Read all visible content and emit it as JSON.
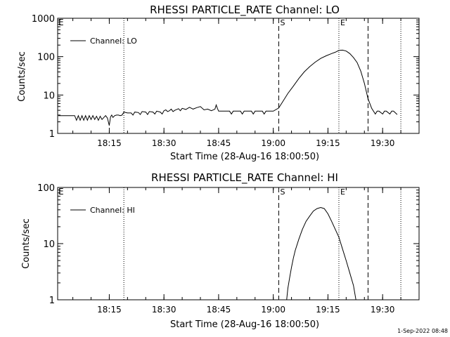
{
  "footer": {
    "timestamp": "1-Sep-2022 08:48"
  },
  "chart_data": [
    {
      "type": "line",
      "title": "RHESSI PARTICLE_RATE Channel: LO",
      "xlabel": "Start Time (28-Aug-16 18:00:50)",
      "ylabel": "Counts/sec",
      "y_scale": "log",
      "ylim": [
        1,
        1000
      ],
      "xlim": [
        "18:00:50",
        "19:40:00"
      ],
      "x_ticks": [
        "18:15",
        "18:30",
        "18:45",
        "19:00",
        "19:15",
        "19:30"
      ],
      "y_ticks": [
        "1",
        "10",
        "100",
        "1000"
      ],
      "legend": {
        "placement": "top-left",
        "entries": [
          "Channel: LO"
        ]
      },
      "markers": [
        {
          "time": "18:19:00",
          "style": "dotted",
          "label": ""
        },
        {
          "time": "19:01:30",
          "style": "dashed",
          "label": "S"
        },
        {
          "time": "19:18:00",
          "style": "dotted",
          "label": "E"
        },
        {
          "time": "19:26:00",
          "style": "dashed",
          "label": ""
        },
        {
          "time": "19:35:00",
          "style": "dotted",
          "label": ""
        }
      ],
      "corner_label": "E",
      "series": [
        {
          "name": "Channel: LO",
          "x": [
            "18:01:00",
            "18:04:00",
            "18:05:30",
            "18:06:00",
            "18:06:30",
            "18:07:00",
            "18:07:30",
            "18:08:00",
            "18:08:30",
            "18:09:00",
            "18:09:30",
            "18:10:00",
            "18:10:30",
            "18:11:00",
            "18:11:30",
            "18:12:00",
            "18:12:30",
            "18:13:00",
            "18:13:30",
            "18:14:00",
            "18:14:30",
            "18:15:00",
            "18:15:20",
            "18:15:40",
            "18:16:00",
            "18:16:30",
            "18:17:00",
            "18:17:30",
            "18:18:00",
            "18:18:30",
            "18:19:00",
            "18:20:00",
            "18:21:00",
            "18:21:30",
            "18:22:00",
            "18:23:00",
            "18:23:30",
            "18:24:00",
            "18:25:00",
            "18:25:30",
            "18:26:00",
            "18:27:00",
            "18:27:30",
            "18:28:00",
            "18:29:00",
            "18:29:30",
            "18:30:00",
            "18:30:30",
            "18:31:00",
            "18:31:30",
            "18:32:00",
            "18:32:30",
            "18:33:00",
            "18:34:00",
            "18:34:30",
            "18:35:00",
            "18:36:00",
            "18:37:00",
            "18:38:00",
            "18:39:00",
            "18:40:00",
            "18:41:00",
            "18:42:00",
            "18:43:00",
            "18:44:00",
            "18:44:20",
            "18:44:40",
            "18:45:00",
            "18:47:00",
            "18:48:00",
            "18:48:30",
            "18:49:00",
            "18:51:00",
            "18:51:30",
            "18:52:00",
            "18:54:00",
            "18:54:30",
            "18:55:00",
            "18:57:00",
            "18:57:30",
            "18:58:00",
            "19:00:00",
            "19:01:30",
            "19:02:30",
            "19:04:00",
            "19:05:30",
            "19:07:00",
            "19:08:30",
            "19:10:00",
            "19:11:30",
            "19:13:00",
            "19:14:30",
            "19:16:00",
            "19:17:00",
            "19:18:00",
            "19:19:00",
            "19:20:00",
            "19:21:00",
            "19:22:00",
            "19:23:00",
            "19:24:00",
            "19:25:00",
            "19:26:00",
            "19:27:00",
            "19:28:00",
            "19:28:30",
            "19:29:00",
            "19:30:00",
            "19:30:30",
            "19:31:00",
            "19:32:00",
            "19:32:30",
            "19:33:00",
            "19:34:00"
          ],
          "y": [
            2.9,
            2.9,
            2.9,
            2.2,
            2.9,
            2.2,
            2.9,
            2.2,
            2.9,
            2.2,
            2.9,
            2.3,
            2.9,
            2.3,
            2.8,
            2.2,
            2.8,
            2.3,
            2.6,
            2.9,
            2.5,
            1.6,
            2.7,
            3.0,
            2.6,
            2.9,
            3.0,
            3.0,
            2.9,
            3.0,
            3.6,
            3.4,
            3.4,
            3.0,
            3.6,
            3.5,
            3.1,
            3.7,
            3.6,
            3.1,
            3.7,
            3.6,
            3.2,
            3.8,
            3.6,
            3.2,
            3.9,
            4.1,
            3.7,
            3.9,
            4.3,
            3.7,
            4.0,
            4.4,
            3.9,
            4.5,
            4.2,
            4.8,
            4.3,
            4.7,
            5.0,
            4.1,
            4.3,
            3.9,
            4.3,
            5.5,
            4.5,
            3.8,
            3.8,
            3.8,
            3.2,
            3.8,
            3.8,
            3.2,
            3.8,
            3.8,
            3.2,
            3.8,
            3.8,
            3.2,
            3.8,
            3.8,
            4.6,
            6.5,
            11,
            17,
            27,
            40,
            55,
            72,
            90,
            105,
            120,
            130,
            145,
            148,
            140,
            120,
            95,
            70,
            42,
            20,
            8,
            4.5,
            3.2,
            3.8,
            3.8,
            3.2,
            3.8,
            3.8,
            3.2,
            3.8,
            3.8,
            3.1
          ]
        }
      ]
    },
    {
      "type": "line",
      "title": "RHESSI PARTICLE_RATE Channel: HI",
      "xlabel": "Start Time (28-Aug-16 18:00:50)",
      "ylabel": "Counts/sec",
      "y_scale": "log",
      "ylim": [
        1,
        100
      ],
      "xlim": [
        "18:00:50",
        "19:40:00"
      ],
      "x_ticks": [
        "18:15",
        "18:30",
        "18:45",
        "19:00",
        "19:15",
        "19:30"
      ],
      "y_ticks": [
        "1",
        "10",
        "100"
      ],
      "legend": {
        "placement": "top-left",
        "entries": [
          "Channel: HI"
        ]
      },
      "markers": [
        {
          "time": "18:19:00",
          "style": "dotted",
          "label": ""
        },
        {
          "time": "19:01:30",
          "style": "dashed",
          "label": "S"
        },
        {
          "time": "19:18:00",
          "style": "dotted",
          "label": "E"
        },
        {
          "time": "19:26:00",
          "style": "dashed",
          "label": ""
        },
        {
          "time": "19:35:00",
          "style": "dotted",
          "label": ""
        }
      ],
      "corner_label": "E",
      "series": [
        {
          "name": "Channel: HI",
          "x": [
            "19:03:40",
            "19:04:00",
            "19:04:30",
            "19:05:00",
            "19:05:30",
            "19:06:00",
            "19:07:00",
            "19:08:00",
            "19:09:00",
            "19:10:00",
            "19:11:00",
            "19:12:00",
            "19:13:00",
            "19:14:00",
            "19:15:00",
            "19:16:00",
            "19:17:00",
            "19:18:00",
            "19:19:00",
            "19:20:00",
            "19:21:00",
            "19:22:00",
            "19:22:40"
          ],
          "y": [
            1.0,
            1.6,
            2.5,
            3.8,
            5.5,
            7.5,
            12,
            18,
            25,
            31,
            38,
            42,
            44,
            42,
            34,
            25,
            18,
            13,
            8,
            5,
            3,
            1.8,
            1.0
          ]
        }
      ]
    }
  ]
}
